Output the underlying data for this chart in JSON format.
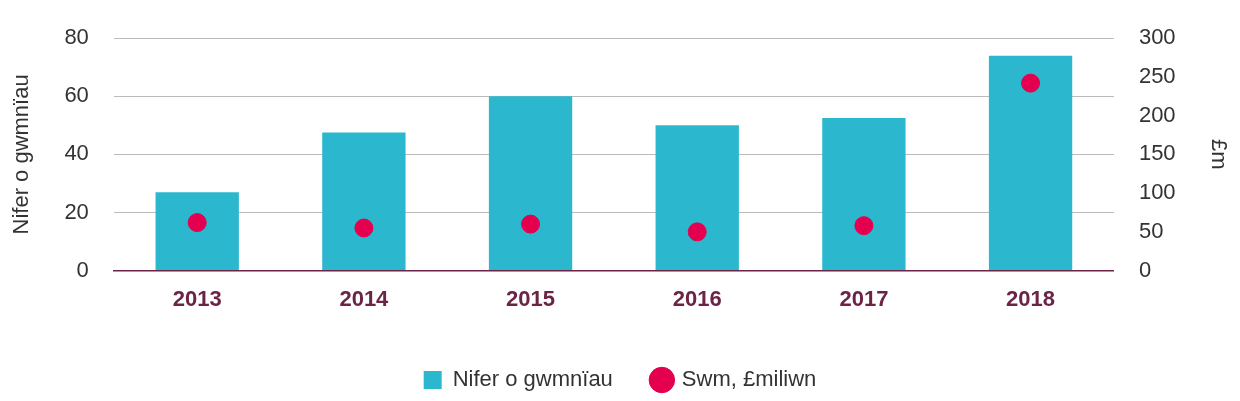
{
  "chart_data": {
    "type": "bar",
    "ylabel": "Nifer o gwmnïau",
    "y2label": "£m",
    "categories": [
      "2013",
      "2014",
      "2015",
      "2016",
      "2017",
      "2018"
    ],
    "series": [
      {
        "name": "Nifer o gwmnïau",
        "color": "#2bb8cf",
        "values": [
          27,
          47.5,
          60,
          50,
          52.5,
          74
        ]
      },
      {
        "name": "Swm, £miliwn",
        "type": "scatter",
        "axis": "y2",
        "color": "#e4004f",
        "marker": "circle",
        "values": [
          62,
          55,
          60,
          50,
          58,
          242
        ]
      }
    ],
    "ylim": [
      0,
      80
    ],
    "yticks": [
      0,
      20,
      40,
      60,
      80
    ],
    "y2lim": [
      0,
      300
    ],
    "y2ticks": [
      0,
      50,
      100,
      150,
      200,
      250,
      300
    ],
    "grid": "y",
    "legend": "bottom"
  }
}
